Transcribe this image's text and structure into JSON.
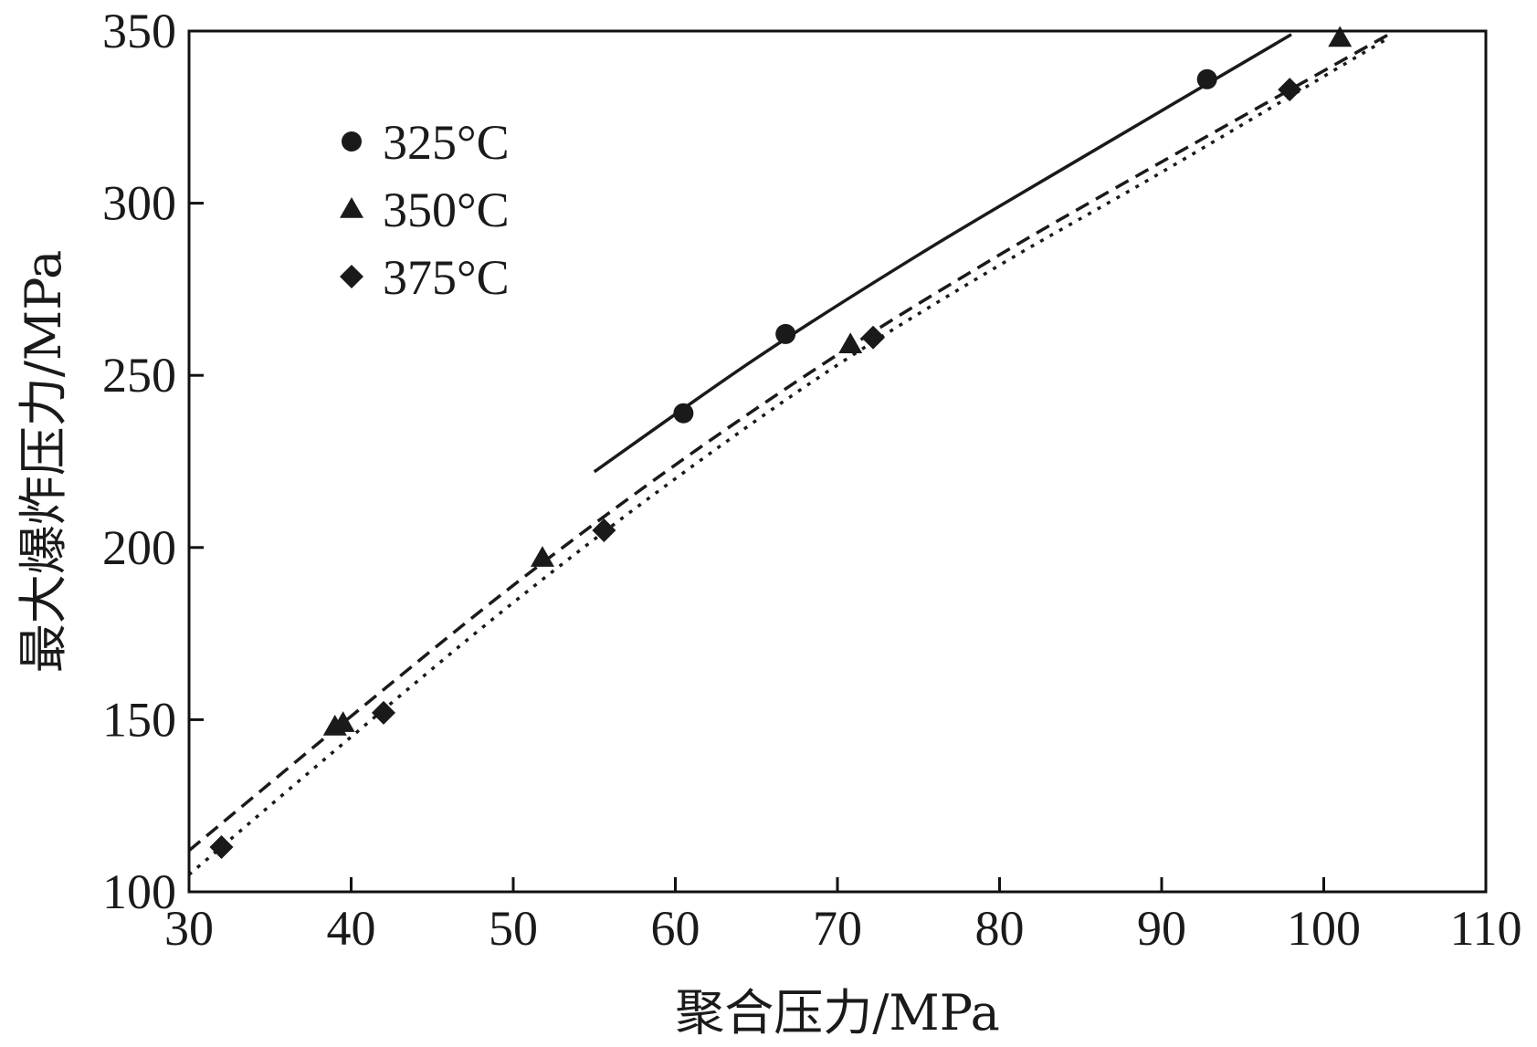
{
  "chart_data": {
    "type": "scatter",
    "xlabel": "聚合压力/MPa",
    "ylabel": "最大爆炸压力/MPa",
    "xlim": [
      30,
      110
    ],
    "ylim": [
      100,
      350
    ],
    "xticks": [
      30,
      40,
      50,
      60,
      70,
      80,
      90,
      100,
      110
    ],
    "yticks": [
      100,
      150,
      200,
      250,
      300,
      350
    ],
    "legend_position": "top-left",
    "grid": false,
    "series": [
      {
        "name": "325°C",
        "marker": "circle",
        "line_style": "solid",
        "points": [
          [
            60.5,
            239
          ],
          [
            66.8,
            262
          ],
          [
            92.8,
            336
          ]
        ],
        "fit_line": [
          [
            55,
            222
          ],
          [
            65,
            255
          ],
          [
            75,
            285
          ],
          [
            85,
            313
          ],
          [
            98,
            349
          ]
        ]
      },
      {
        "name": "350°C",
        "marker": "triangle",
        "line_style": "dashed",
        "points": [
          [
            39,
            148
          ],
          [
            39.5,
            149
          ],
          [
            51.8,
            197
          ],
          [
            70.8,
            259
          ],
          [
            101,
            348
          ]
        ],
        "fit_line": [
          [
            30,
            112
          ],
          [
            40,
            151
          ],
          [
            50,
            189
          ],
          [
            60,
            224
          ],
          [
            70,
            256
          ],
          [
            80,
            285
          ],
          [
            90,
            312
          ],
          [
            104,
            349
          ]
        ]
      },
      {
        "name": "375°C",
        "marker": "diamond",
        "line_style": "dotted",
        "points": [
          [
            32,
            113
          ],
          [
            42,
            152
          ],
          [
            55.6,
            205
          ],
          [
            72.2,
            261
          ],
          [
            97.9,
            333
          ]
        ],
        "fit_line": [
          [
            30,
            105
          ],
          [
            40,
            145
          ],
          [
            50,
            184
          ],
          [
            60,
            220
          ],
          [
            70,
            253
          ],
          [
            80,
            282
          ],
          [
            90,
            309
          ],
          [
            104,
            348
          ]
        ]
      }
    ]
  }
}
